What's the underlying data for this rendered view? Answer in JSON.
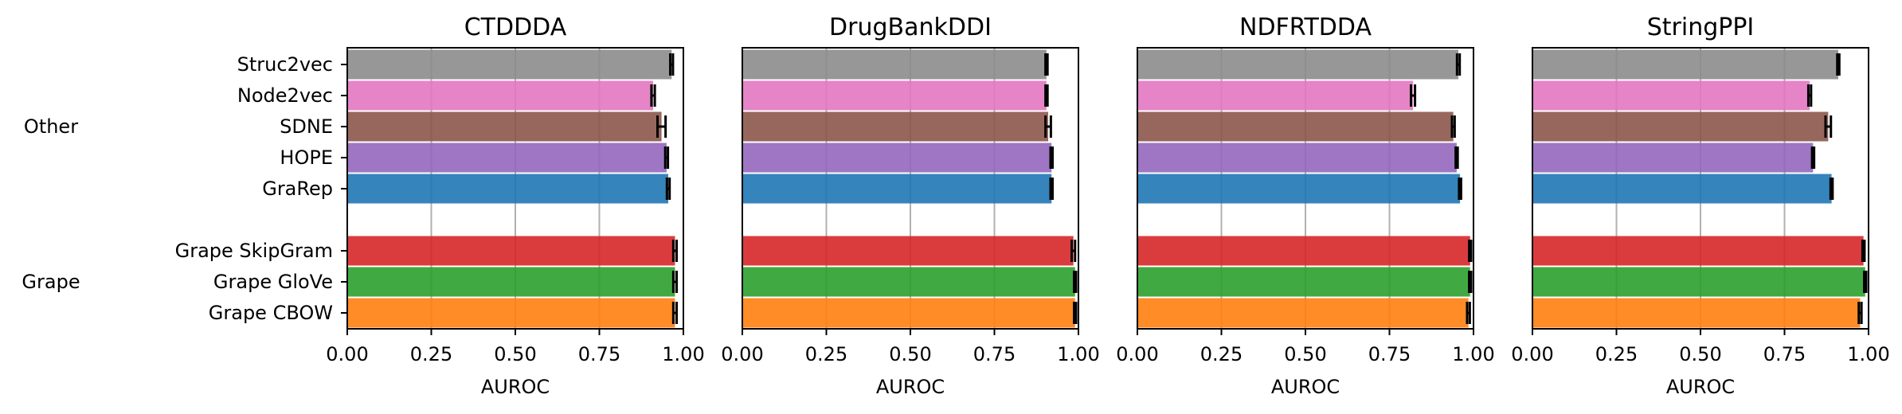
{
  "chart_data": {
    "type": "bar",
    "orientation": "horizontal",
    "xlabel": "AUROC",
    "xlim": [
      0,
      1
    ],
    "xticks": [
      "0.00",
      "0.25",
      "0.50",
      "0.75",
      "1.00"
    ],
    "grid": "vertical",
    "groups": [
      {
        "label": "Other",
        "items": [
          "Struc2vec",
          "Node2vec",
          "SDNE",
          "HOPE",
          "GraRep"
        ]
      },
      {
        "label": "Grape",
        "items": [
          "Grape SkipGram",
          "Grape GloVe",
          "Grape CBOW"
        ]
      }
    ],
    "categories": [
      "Struc2vec",
      "Node2vec",
      "SDNE",
      "HOPE",
      "GraRep",
      "Grape SkipGram",
      "Grape GloVe",
      "Grape CBOW"
    ],
    "colors": {
      "Struc2vec": "#8c8c8c",
      "Node2vec": "#e377c2",
      "SDNE": "#8c564b",
      "HOPE": "#9467bd",
      "GraRep": "#1f77b4",
      "Grape SkipGram": "#d62728",
      "Grape GloVe": "#2ca02c",
      "Grape CBOW": "#ff7f0e"
    },
    "panels": [
      {
        "title": "CTDDDA",
        "values": [
          0.965,
          0.91,
          0.935,
          0.95,
          0.955,
          0.975,
          0.975,
          0.975
        ],
        "errors": [
          0.004,
          0.005,
          0.012,
          0.004,
          0.004,
          0.005,
          0.005,
          0.005
        ]
      },
      {
        "title": "DrugBankDDI",
        "values": [
          0.905,
          0.905,
          0.91,
          0.92,
          0.92,
          0.985,
          0.99,
          0.99
        ],
        "errors": [
          0.003,
          0.003,
          0.008,
          0.003,
          0.003,
          0.005,
          0.003,
          0.003
        ]
      },
      {
        "title": "NDFRTDDA",
        "values": [
          0.955,
          0.82,
          0.94,
          0.95,
          0.96,
          0.99,
          0.99,
          0.985
        ],
        "errors": [
          0.004,
          0.006,
          0.004,
          0.003,
          0.003,
          0.003,
          0.003,
          0.004
        ]
      },
      {
        "title": "StringPPI",
        "values": [
          0.91,
          0.825,
          0.88,
          0.835,
          0.89,
          0.985,
          0.99,
          0.975
        ],
        "errors": [
          0.003,
          0.004,
          0.008,
          0.003,
          0.003,
          0.003,
          0.003,
          0.004
        ]
      }
    ]
  }
}
